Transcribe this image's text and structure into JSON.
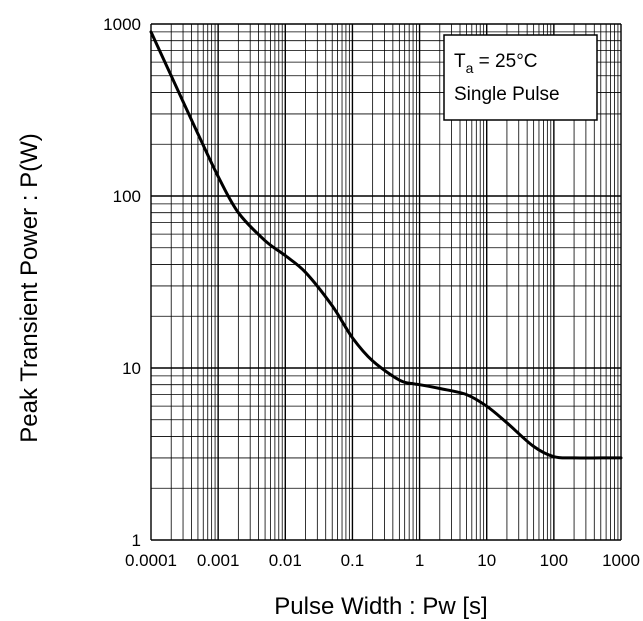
{
  "chart_data": {
    "type": "line",
    "title": "",
    "xlabel": "Pulse Width : Pw [s]",
    "ylabel": "Peak Transient Power : P(W)",
    "xscale": "log",
    "yscale": "log",
    "xlim": [
      0.0001,
      1000
    ],
    "ylim": [
      1,
      1000
    ],
    "grid": true,
    "x_tick_labels": [
      "0.0001",
      "0.001",
      "0.01",
      "0.1",
      "1",
      "10",
      "100",
      "1000"
    ],
    "y_tick_labels": [
      "1",
      "10",
      "100",
      "1000"
    ],
    "annotation": {
      "position": "top-right",
      "ta_symbol": "T",
      "ta_subscript": "a",
      "ta_value": " = 25°C",
      "line2": "Single Pulse"
    },
    "series": [
      {
        "x": [
          0.0001,
          0.0002,
          0.0005,
          0.001,
          0.002,
          0.005,
          0.01,
          0.02,
          0.05,
          0.1,
          0.2,
          0.5,
          0.8,
          1,
          2,
          5,
          10,
          20,
          50,
          100,
          200,
          500,
          1000
        ],
        "y": [
          900,
          500,
          230,
          130,
          80,
          55,
          45,
          36,
          23,
          15,
          11,
          8.5,
          8.1,
          8.0,
          7.6,
          7.0,
          6.0,
          4.8,
          3.5,
          3.05,
          3.0,
          3.0,
          3.0
        ]
      }
    ]
  }
}
